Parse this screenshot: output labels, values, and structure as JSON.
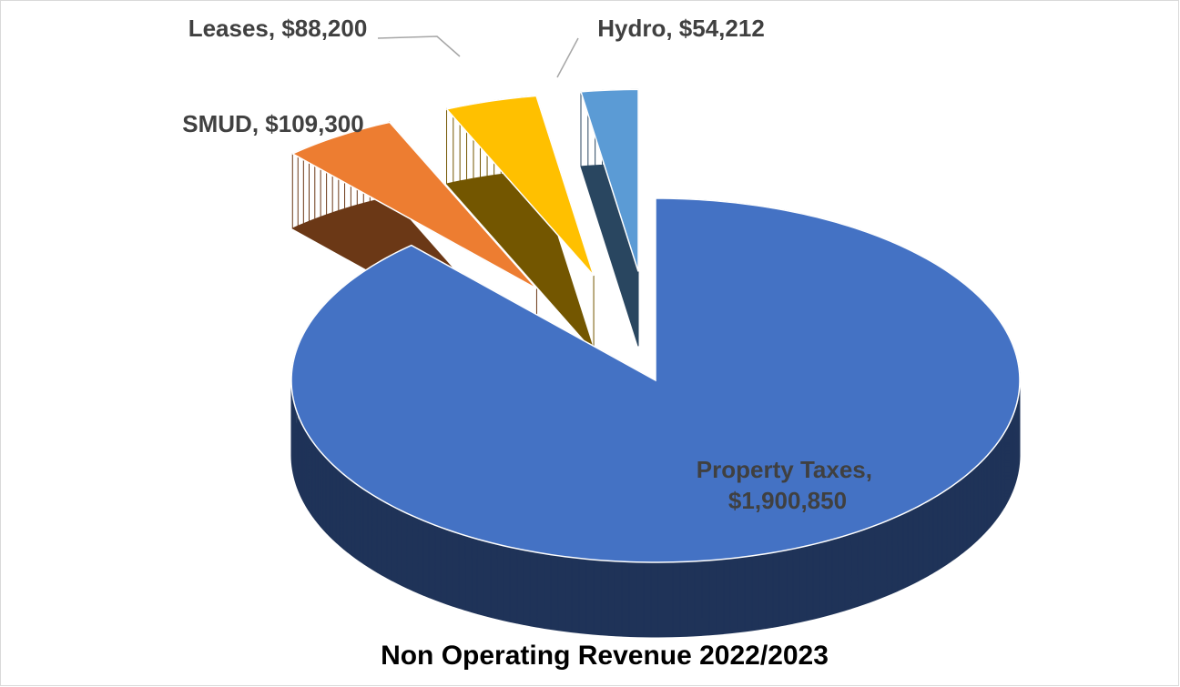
{
  "chart_data": {
    "type": "pie",
    "title": "Non Operating Revenue 2022/2023",
    "categories": [
      "Property Taxes",
      "SMUD",
      "Leases",
      "Hydro"
    ],
    "values": [
      1900850,
      109300,
      88200,
      54212
    ],
    "value_labels": [
      "$1,900,850",
      "$109,300",
      "$88,200",
      "$54,212"
    ],
    "label_separator": ", ",
    "colors": [
      "#4472c4",
      "#ed7d31",
      "#ffc000",
      "#5b9bd5"
    ],
    "start_angle": 0,
    "direction": "clockwise",
    "three_d": true,
    "exploded": [
      false,
      true,
      true,
      true
    ]
  }
}
